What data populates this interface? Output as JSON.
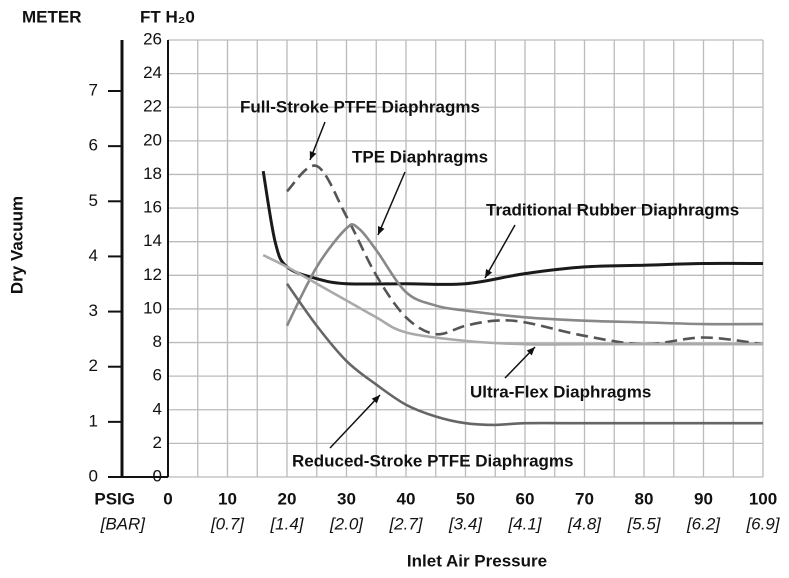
{
  "chart_data": {
    "type": "line",
    "ylabel": "Dry Vacuum",
    "xlabel": "Inlet Air Pressure",
    "y_unit_label": "FT H₂0",
    "y2_unit_label": "METER",
    "x_unit_label": "PSIG",
    "x2_unit_label": "[BAR]",
    "xlim": [
      0,
      100
    ],
    "xticks": [
      0,
      10,
      20,
      30,
      40,
      50,
      60,
      70,
      80,
      90,
      100
    ],
    "xgrid": [
      0,
      5,
      10,
      15,
      20,
      25,
      30,
      35,
      40,
      45,
      50,
      55,
      60,
      65,
      70,
      75,
      80,
      85,
      90,
      95,
      100
    ],
    "x2ticks": [
      {
        "value": 10,
        "label": "[0.7]"
      },
      {
        "value": 20,
        "label": "[1.4]"
      },
      {
        "value": 30,
        "label": "[2.0]"
      },
      {
        "value": 40,
        "label": "[2.7]"
      },
      {
        "value": 50,
        "label": "[3.4]"
      },
      {
        "value": 60,
        "label": "[4.1]"
      },
      {
        "value": 70,
        "label": "[4.8]"
      },
      {
        "value": 80,
        "label": "[5.5]"
      },
      {
        "value": 90,
        "label": "[6.2]"
      },
      {
        "value": 100,
        "label": "[6.9]"
      }
    ],
    "ylim": [
      0,
      26
    ],
    "yticks": [
      0,
      2,
      4,
      6,
      8,
      10,
      12,
      14,
      16,
      18,
      20,
      22,
      24,
      26
    ],
    "y2lim": [
      0,
      7.925
    ],
    "y2ticks": [
      0,
      1,
      2,
      3,
      4,
      5,
      6,
      7
    ],
    "grid": true,
    "series": [
      {
        "name": "Traditional Rubber Diaphragms",
        "color": "#1a1a1a",
        "dashed": false,
        "x": [
          16,
          18,
          20,
          25,
          30,
          40,
          50,
          60,
          70,
          80,
          90,
          100
        ],
        "values": [
          18.2,
          14,
          12.5,
          11.8,
          11.5,
          11.5,
          11.5,
          12.1,
          12.5,
          12.6,
          12.7,
          12.7
        ]
      },
      {
        "name": "Full-Stroke PTFE Diaphragms",
        "color": "#555555",
        "dashed": true,
        "x": [
          20,
          25,
          30,
          35,
          40,
          45,
          50,
          55,
          60,
          70,
          80,
          90,
          100
        ],
        "values": [
          17,
          18.5,
          15.5,
          12,
          9.5,
          8.5,
          9,
          9.3,
          9.2,
          8.4,
          7.9,
          8.3,
          7.9
        ]
      },
      {
        "name": "TPE Diaphragms",
        "color": "#888888",
        "dashed": false,
        "x": [
          20,
          25,
          30,
          32,
          35,
          40,
          45,
          50,
          60,
          70,
          80,
          90,
          100
        ],
        "values": [
          9,
          12.5,
          14.8,
          14.8,
          13.5,
          11,
          10.2,
          9.9,
          9.5,
          9.3,
          9.2,
          9.1,
          9.1
        ]
      },
      {
        "name": "Ultra-Flex Diaphragms",
        "color": "#aaaaaa",
        "dashed": false,
        "x": [
          16,
          20,
          25,
          30,
          35,
          40,
          50,
          60,
          70,
          80,
          90,
          100
        ],
        "values": [
          13.2,
          12.5,
          11.5,
          10.5,
          9.5,
          8.6,
          8.1,
          7.9,
          7.9,
          7.9,
          7.9,
          7.9
        ]
      },
      {
        "name": "Reduced-Stroke PTFE Diaphragms",
        "color": "#666666",
        "dashed": false,
        "x": [
          20,
          25,
          30,
          35,
          40,
          45,
          50,
          55,
          60,
          70,
          80,
          90,
          100
        ],
        "values": [
          11.5,
          9,
          6.9,
          5.5,
          4.3,
          3.6,
          3.2,
          3.1,
          3.2,
          3.2,
          3.2,
          3.2,
          3.2
        ]
      }
    ]
  }
}
